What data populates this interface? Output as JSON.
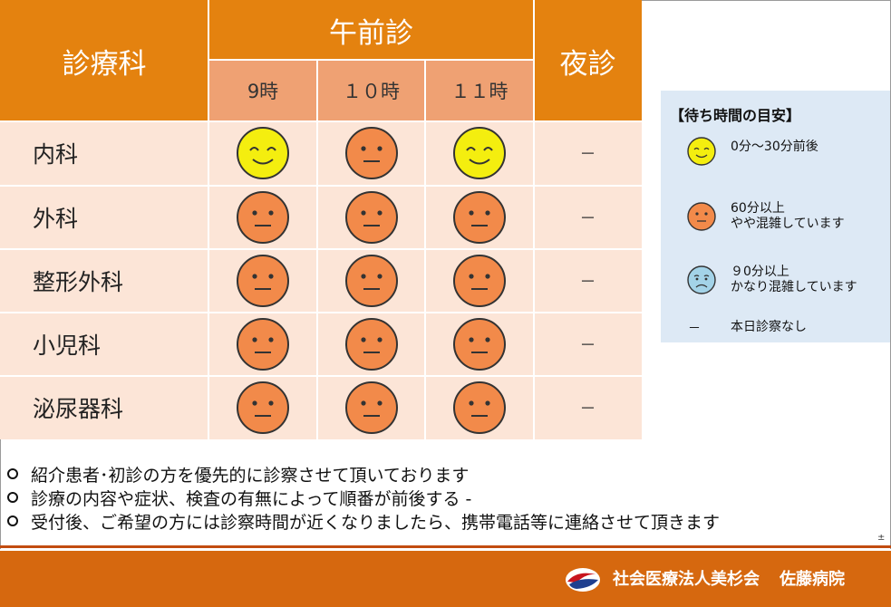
{
  "table": {
    "header_department": "診療科",
    "header_morning": "午前診",
    "header_night": "夜診",
    "time_slots": [
      "9時",
      "１０時",
      "１１時"
    ],
    "rows": [
      {
        "department": "内科",
        "slots": [
          "smile",
          "neutral",
          "smile"
        ],
        "night": "－"
      },
      {
        "department": "外科",
        "slots": [
          "neutral",
          "neutral",
          "neutral"
        ],
        "night": "－"
      },
      {
        "department": "整形外科",
        "slots": [
          "neutral",
          "neutral",
          "neutral"
        ],
        "night": "－"
      },
      {
        "department": "小児科",
        "slots": [
          "neutral",
          "neutral",
          "neutral"
        ],
        "night": "－"
      },
      {
        "department": "泌尿器科",
        "slots": [
          "neutral",
          "neutral",
          "neutral"
        ],
        "night": "－"
      }
    ]
  },
  "legend": {
    "title": "【待ち時間の目安】",
    "items": [
      {
        "icon": "smile-face-icon",
        "line1": "0分～30分前後",
        "line2": ""
      },
      {
        "icon": "neutral-face-icon",
        "line1": "60分以上",
        "line2": "やや混雑しています"
      },
      {
        "icon": "sad-face-icon",
        "line1": "９0分以上",
        "line2": "かなり混雑しています"
      },
      {
        "icon": "dash-icon",
        "line1": "本日診察なし",
        "line2": ""
      }
    ],
    "dash_symbol": "－"
  },
  "notes": [
    "紹介患者･初診の方を優先的に診察させて頂いております",
    "診療の内容や症状、検査の有無によって順番が前後する -",
    "受付後、ご希望の方には診察時間が近くなりましたら、携帯電話等に連絡させて頂きます"
  ],
  "stray_mark": "±",
  "footer": {
    "org": "社会医療法人美杉会",
    "hospital": "佐藤病院"
  },
  "colors": {
    "header_dark": "#e4820f",
    "header_light": "#efa173",
    "row_bg": "#fce5d7",
    "face_yellow": "#f4ee0f",
    "face_orange": "#f28a4a",
    "face_blue": "#a3d3e8",
    "legend_bg": "#dde9f5",
    "footer_bg": "#d6680f"
  }
}
